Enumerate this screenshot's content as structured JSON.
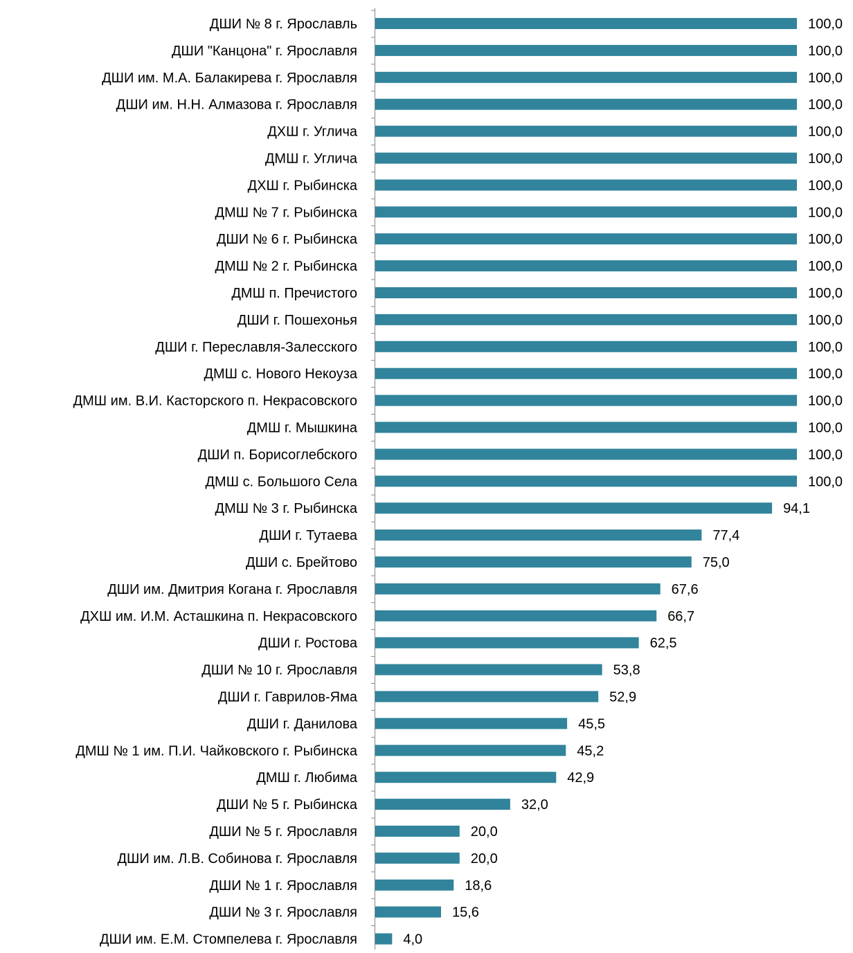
{
  "chart_data": {
    "type": "bar",
    "orientation": "horizontal",
    "title": "",
    "xlabel": "",
    "ylabel": "",
    "xlim": [
      0,
      100
    ],
    "grid": false,
    "legend": "none",
    "bar_color": "#31849B",
    "categories": [
      "ДШИ № 8 г. Ярославль",
      "ДШИ \"Канцона\" г. Ярославля",
      "ДШИ им. М.А. Балакирева г. Ярославля",
      "ДШИ им. Н.Н. Алмазова г. Ярославля",
      "ДХШ г. Углича",
      "ДМШ г. Углича",
      "ДХШ г. Рыбинска",
      "ДМШ № 7 г. Рыбинска",
      "ДШИ № 6 г. Рыбинска",
      "ДМШ № 2 г. Рыбинска",
      "ДМШ п. Пречистого",
      "ДШИ г. Пошехонья",
      "ДШИ г. Переславля-Залесского",
      "ДМШ с. Нового Некоуза",
      "ДМШ им. В.И. Касторского п. Некрасовского",
      "ДМШ г. Мышкина",
      "ДШИ п. Борисоглебского",
      "ДМШ с. Большого Села",
      "ДМШ № 3 г. Рыбинска",
      "ДШИ г. Тутаева",
      "ДШИ с. Брейтово",
      "ДШИ им. Дмитрия Когана г. Ярославля",
      "ДХШ им. И.М. Асташкина п. Некрасовского",
      "ДШИ г. Ростова",
      "ДШИ № 10 г. Ярославля",
      "ДШИ г. Гаврилов-Яма",
      "ДШИ г. Данилова",
      "ДМШ № 1 им. П.И. Чайковского г. Рыбинска",
      "ДМШ г. Любима",
      "ДШИ № 5 г. Рыбинска",
      "ДШИ № 5 г. Ярославля",
      "ДШИ им. Л.В. Собинова г. Ярославля",
      "ДШИ № 1 г. Ярославля",
      "ДШИ № 3 г. Ярославля",
      "ДШИ им. Е.М. Стомпелева г. Ярославля"
    ],
    "values": [
      100.0,
      100.0,
      100.0,
      100.0,
      100.0,
      100.0,
      100.0,
      100.0,
      100.0,
      100.0,
      100.0,
      100.0,
      100.0,
      100.0,
      100.0,
      100.0,
      100.0,
      100.0,
      94.1,
      77.4,
      75.0,
      67.6,
      66.7,
      62.5,
      53.8,
      52.9,
      45.5,
      45.2,
      42.9,
      32.0,
      20.0,
      20.0,
      18.6,
      15.6,
      4.0
    ],
    "value_labels": [
      "100,0",
      "100,0",
      "100,0",
      "100,0",
      "100,0",
      "100,0",
      "100,0",
      "100,0",
      "100,0",
      "100,0",
      "100,0",
      "100,0",
      "100,0",
      "100,0",
      "100,0",
      "100,0",
      "100,0",
      "100,0",
      "94,1",
      "77,4",
      "75,0",
      "67,6",
      "66,7",
      "62,5",
      "53,8",
      "52,9",
      "45,5",
      "45,2",
      "42,9",
      "32,0",
      "20,0",
      "20,0",
      "18,6",
      "15,6",
      "4,0"
    ]
  }
}
